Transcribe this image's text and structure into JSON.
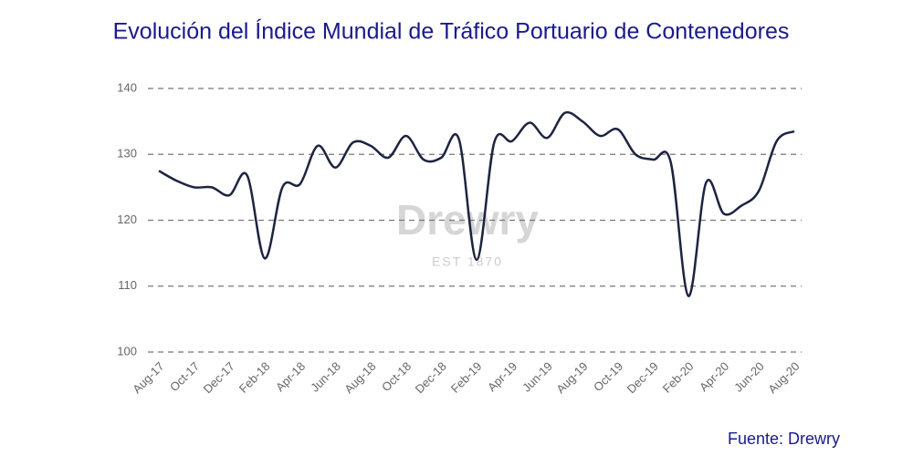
{
  "chart_data": {
    "type": "line",
    "title": "Evolución del Índice Mundial de Tráfico Portuario de Contenedores",
    "source": "Fuente: Drewry",
    "watermark": {
      "name": "Drewry",
      "tagline": "EST 1870"
    },
    "categories": [
      "Aug-17",
      null,
      "Oct-17",
      null,
      "Dec-17",
      null,
      "Feb-18",
      null,
      "Apr-18",
      null,
      "Jun-18",
      null,
      "Aug-18",
      null,
      "Oct-18",
      null,
      "Dec-18",
      null,
      "Feb-19",
      null,
      "Apr-19",
      null,
      "Jun-19",
      null,
      "Aug-19",
      null,
      "Oct-19",
      null,
      "Dec-19",
      null,
      "Feb-20",
      null,
      "Apr-20",
      null,
      "Jun-20",
      null,
      "Aug-20"
    ],
    "series": [
      {
        "color": "#1c2440",
        "values": [
          127.5,
          126,
          125,
          125,
          123.8,
          126.8,
          114.2,
          125,
          125.5,
          131.3,
          128,
          131.8,
          131.3,
          129.5,
          132.8,
          129.2,
          129.5,
          132.3,
          114,
          131.8,
          132,
          134.8,
          132.5,
          136.3,
          135,
          132.8,
          133.8,
          130,
          129.2,
          128.8,
          108.5,
          125.7,
          121,
          122.2,
          124.5,
          132,
          133.5
        ]
      }
    ],
    "ylim": [
      100,
      140
    ],
    "yticks": [
      100,
      110,
      120,
      130,
      140
    ],
    "grid": true
  }
}
